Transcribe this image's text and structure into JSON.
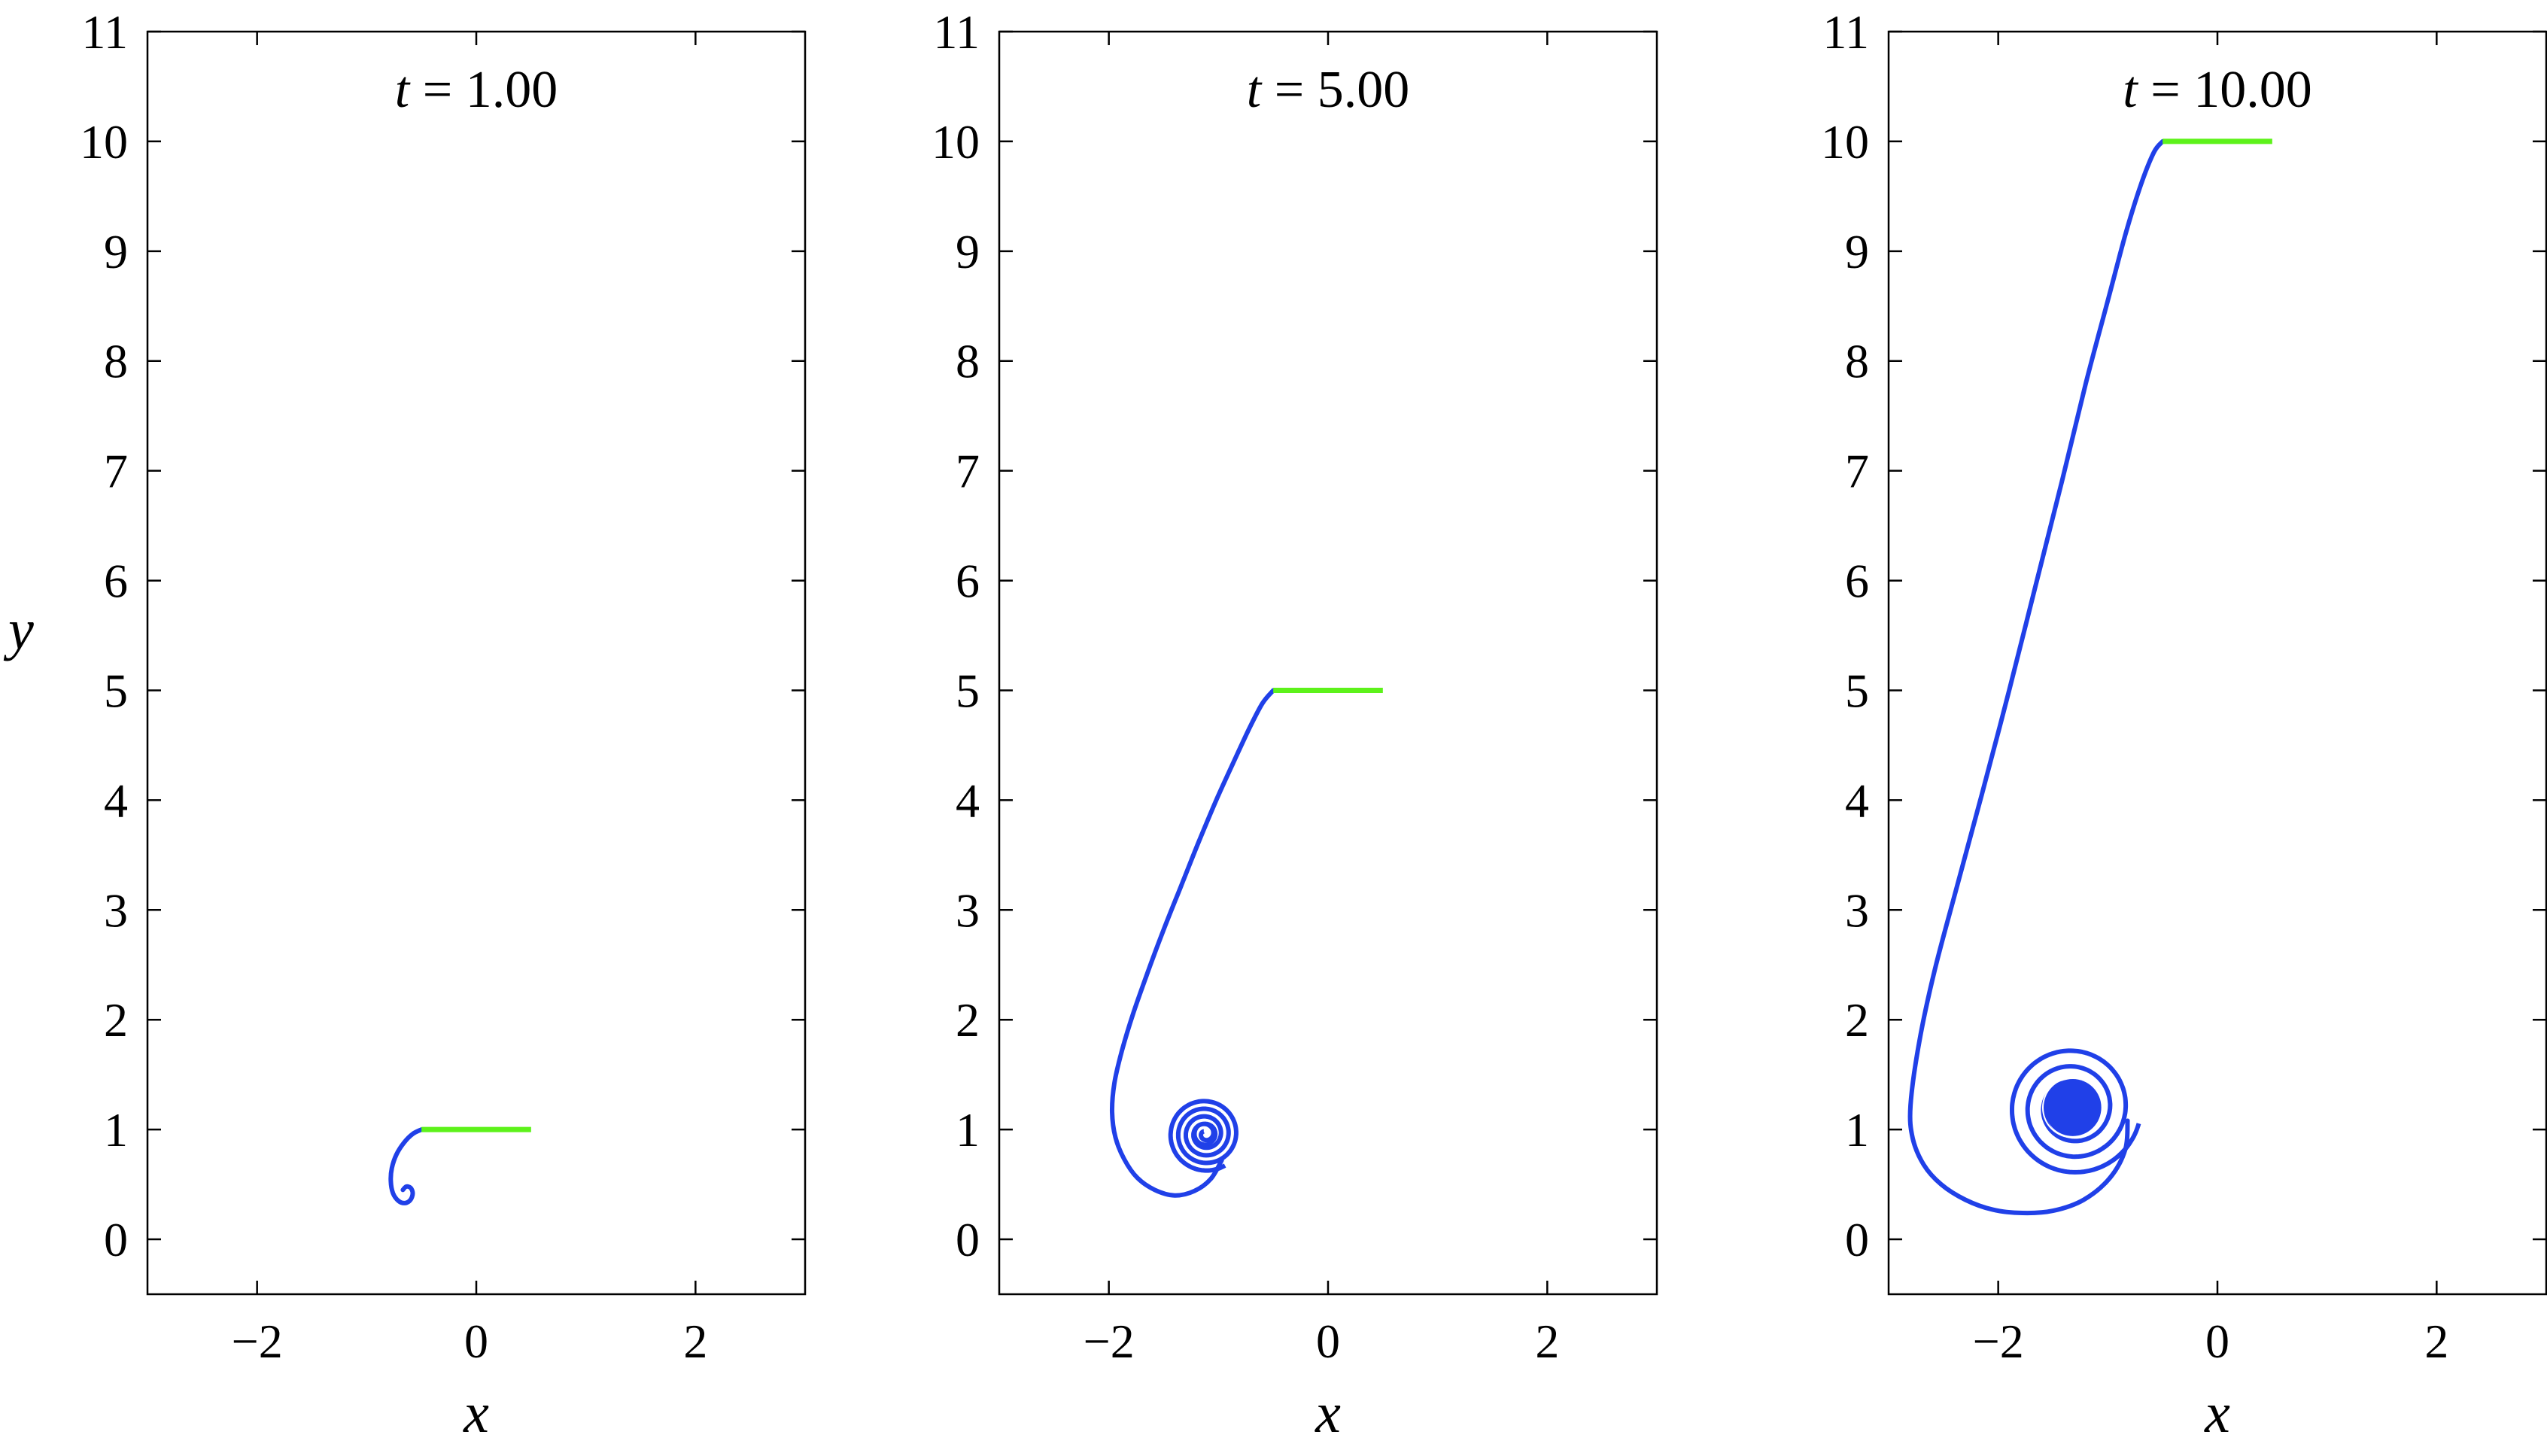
{
  "figure": {
    "y_axis_label": "y",
    "x_axis_label": "x"
  },
  "panels": [
    {
      "title_var": "t",
      "title_eq": " = ",
      "title_value": "1.00"
    },
    {
      "title_var": "t",
      "title_eq": " = ",
      "title_value": "5.00"
    },
    {
      "title_var": "t",
      "title_eq": " = ",
      "title_value": "10.00"
    }
  ],
  "chart_data": [
    {
      "type": "line",
      "title": "t = 1.00",
      "xlabel": "x",
      "ylabel": "y",
      "xlim": [
        -3,
        3
      ],
      "ylim": [
        -0.5,
        11
      ],
      "xticks": [
        -2,
        0,
        2
      ],
      "xtick_labels": [
        "−2",
        "0",
        "2"
      ],
      "yticks": [
        0,
        1,
        2,
        3,
        4,
        5,
        6,
        7,
        8,
        9,
        10,
        11
      ],
      "ytick_labels": [
        "0",
        "1",
        "2",
        "3",
        "4",
        "5",
        "6",
        "7",
        "8",
        "9",
        "10",
        "11"
      ],
      "grid": false,
      "legend": "none",
      "series": [
        {
          "color": "#2040e8",
          "kind": "vortex-sheet",
          "attach": [
            -0.5,
            1.0
          ],
          "path": [
            [
              -0.5,
              1.0
            ],
            [
              -0.58,
              0.96
            ],
            [
              -0.66,
              0.88
            ],
            [
              -0.73,
              0.77
            ],
            [
              -0.77,
              0.65
            ],
            [
              -0.78,
              0.53
            ],
            [
              -0.76,
              0.42
            ],
            [
              -0.71,
              0.35
            ],
            [
              -0.65,
              0.33
            ],
            [
              -0.6,
              0.36
            ],
            [
              -0.58,
              0.42
            ],
            [
              -0.6,
              0.47
            ],
            [
              -0.64,
              0.48
            ],
            [
              -0.67,
              0.45
            ]
          ],
          "core": {
            "center": [
              -0.64,
              0.42
            ],
            "turns": 0,
            "r_outer": 0
          }
        },
        {
          "color": "#5df21a",
          "kind": "flat-plate",
          "x": [
            -0.5,
            0.5
          ],
          "y": [
            1.0,
            1.0
          ]
        }
      ]
    },
    {
      "type": "line",
      "title": "t = 5.00",
      "xlabel": "x",
      "ylabel": "y",
      "xlim": [
        -3,
        3
      ],
      "ylim": [
        -0.5,
        11
      ],
      "xticks": [
        -2,
        0,
        2
      ],
      "xtick_labels": [
        "−2",
        "0",
        "2"
      ],
      "yticks": [
        0,
        1,
        2,
        3,
        4,
        5,
        6,
        7,
        8,
        9,
        10,
        11
      ],
      "ytick_labels": [
        "0",
        "1",
        "2",
        "3",
        "4",
        "5",
        "6",
        "7",
        "8",
        "9",
        "10",
        "11"
      ],
      "grid": false,
      "legend": "none",
      "series": [
        {
          "color": "#2040e8",
          "kind": "vortex-sheet",
          "attach": [
            -0.5,
            5.0
          ],
          "path": [
            [
              -0.5,
              5.0
            ],
            [
              -0.6,
              4.88
            ],
            [
              -0.72,
              4.65
            ],
            [
              -0.86,
              4.35
            ],
            [
              -1.02,
              4.0
            ],
            [
              -1.18,
              3.62
            ],
            [
              -1.34,
              3.22
            ],
            [
              -1.5,
              2.82
            ],
            [
              -1.65,
              2.42
            ],
            [
              -1.78,
              2.05
            ],
            [
              -1.88,
              1.72
            ],
            [
              -1.95,
              1.42
            ],
            [
              -1.97,
              1.16
            ],
            [
              -1.94,
              0.93
            ],
            [
              -1.86,
              0.73
            ],
            [
              -1.74,
              0.56
            ],
            [
              -1.58,
              0.45
            ],
            [
              -1.4,
              0.4
            ],
            [
              -1.22,
              0.44
            ],
            [
              -1.07,
              0.55
            ],
            [
              -0.97,
              0.72
            ]
          ],
          "core": {
            "center": [
              -1.12,
              0.96
            ],
            "turns": 4.5,
            "r_outer": 0.34
          }
        },
        {
          "color": "#5df21a",
          "kind": "flat-plate",
          "x": [
            -0.5,
            0.5
          ],
          "y": [
            5.0,
            5.0
          ]
        }
      ]
    },
    {
      "type": "line",
      "title": "t = 10.00",
      "xlabel": "x",
      "ylabel": "y",
      "xlim": [
        -3,
        3
      ],
      "ylim": [
        -0.5,
        11
      ],
      "xticks": [
        -2,
        0,
        2
      ],
      "xtick_labels": [
        "−2",
        "0",
        "2"
      ],
      "yticks": [
        0,
        1,
        2,
        3,
        4,
        5,
        6,
        7,
        8,
        9,
        10,
        11
      ],
      "ytick_labels": [
        "0",
        "1",
        "2",
        "3",
        "4",
        "5",
        "6",
        "7",
        "8",
        "9",
        "10",
        "11"
      ],
      "grid": false,
      "legend": "none",
      "series": [
        {
          "color": "#2040e8",
          "kind": "vortex-sheet",
          "attach": [
            -0.5,
            10.0
          ],
          "path": [
            [
              -0.5,
              10.0
            ],
            [
              -0.58,
              9.9
            ],
            [
              -0.7,
              9.6
            ],
            [
              -0.84,
              9.15
            ],
            [
              -1.0,
              8.55
            ],
            [
              -1.2,
              7.8
            ],
            [
              -1.42,
              6.9
            ],
            [
              -1.66,
              5.95
            ],
            [
              -1.9,
              5.0
            ],
            [
              -2.15,
              4.05
            ],
            [
              -2.38,
              3.2
            ],
            [
              -2.58,
              2.45
            ],
            [
              -2.72,
              1.8
            ],
            [
              -2.8,
              1.22
            ],
            [
              -2.78,
              0.92
            ],
            [
              -2.68,
              0.68
            ],
            [
              -2.52,
              0.5
            ],
            [
              -2.3,
              0.36
            ],
            [
              -2.05,
              0.27
            ],
            [
              -1.78,
              0.24
            ],
            [
              -1.5,
              0.26
            ],
            [
              -1.22,
              0.36
            ],
            [
              -0.98,
              0.56
            ],
            [
              -0.84,
              0.82
            ],
            [
              -0.82,
              1.08
            ]
          ],
          "core": {
            "center": [
              -1.32,
              1.2
            ],
            "turns": 4,
            "r_outer": 0.62
          }
        },
        {
          "color": "#5df21a",
          "kind": "flat-plate",
          "x": [
            -0.5,
            0.5
          ],
          "y": [
            10.0,
            10.0
          ]
        }
      ]
    }
  ]
}
